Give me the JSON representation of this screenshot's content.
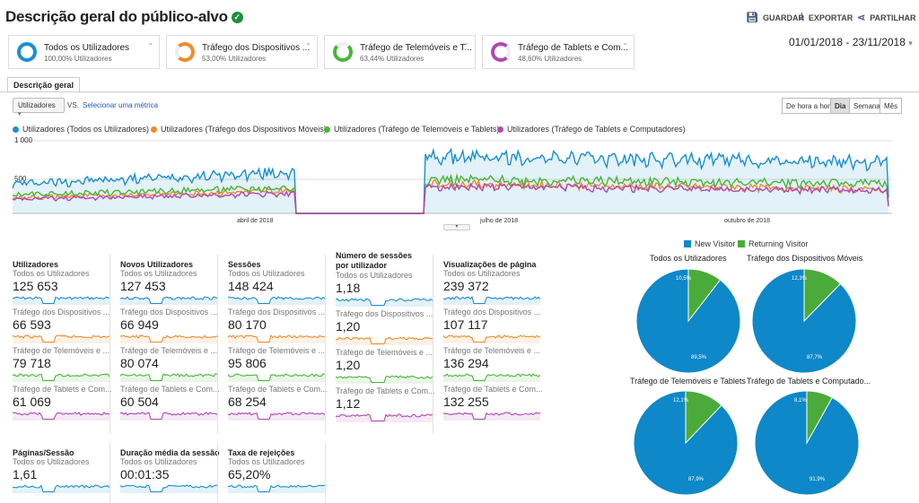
{
  "header": {
    "title": "Descrição geral do público-alvo",
    "save_label": "GUARDAR",
    "export_label": "EXPORTAR",
    "share_label": "PARTILHAR"
  },
  "segments": [
    {
      "name": "Todos os Utilizadores",
      "pct": "100,00% Utilizadores",
      "color": "#1a8fd0"
    },
    {
      "name": "Tráfego dos Dispositivos ...",
      "pct": "53,00% Utilizadores",
      "color": "#f08b2a"
    },
    {
      "name": "Tráfego de Telemóveis e T...",
      "pct": "63,44% Utilizadores",
      "color": "#4ab53a"
    },
    {
      "name": "Tráfego de Tablets e Com...",
      "pct": "48,60% Utilizadores",
      "color": "#b048b5"
    }
  ],
  "date_range": "01/01/2018 - 23/11/2018",
  "tab": "Descrição geral",
  "controls": {
    "metric": "Utilizadores",
    "vs": "VS.",
    "select_metric": "Selecionar uma métrica",
    "granularity": [
      "De hora a hora",
      "Dia",
      "Semana",
      "Mês"
    ],
    "active_granularity": "Dia"
  },
  "chart_legend": [
    "Utilizadores (Todos os Utilizadores)",
    "Utilizadores (Tráfego dos Dispositivos Móveis)",
    "Utilizadores (Tráfego de Telemóveis e Tablets)",
    "Utilizadores (Tráfego de Tablets e Computadores)"
  ],
  "chart_data": {
    "type": "line",
    "y_ticks": [
      "1 000",
      "500"
    ],
    "ylim": [
      0,
      1000
    ],
    "x_ticks": [
      "abril de 2018",
      "julho de 2018",
      "outubro de 2018"
    ],
    "series": [
      {
        "name": "Utilizadores (Todos os Utilizadores)",
        "color": "#1a8fd0",
        "segments": [
          {
            "start": 420,
            "end": 580
          },
          {
            "start": 800,
            "end": 720
          }
        ]
      },
      {
        "name": "Utilizadores (Tráfego dos Dispositivos Móveis)",
        "color": "#f08b2a",
        "segments": [
          {
            "start": 220,
            "end": 320
          },
          {
            "start": 420,
            "end": 340
          }
        ]
      },
      {
        "name": "Utilizadores (Tráfego de Telemóveis e Tablets)",
        "color": "#4ab53a",
        "segments": [
          {
            "start": 260,
            "end": 360
          },
          {
            "start": 480,
            "end": 420
          }
        ]
      },
      {
        "name": "Utilizadores (Tráfego de Tablets e Computadores)",
        "color": "#b048b5",
        "segments": [
          {
            "start": 200,
            "end": 280
          },
          {
            "start": 380,
            "end": 320
          }
        ]
      }
    ]
  },
  "metrics": [
    {
      "title": "Utilizadores",
      "rows": [
        {
          "segment": "Todos os Utilizadores",
          "value": "125 653",
          "color": "#1a8fd0"
        },
        {
          "segment": "Tráfego dos Dispositivos ...",
          "value": "66 593",
          "color": "#f08b2a"
        },
        {
          "segment": "Tráfego de Telemóveis e ...",
          "value": "79 718",
          "color": "#4ab53a"
        },
        {
          "segment": "Tráfego de Tablets e Com...",
          "value": "61 069",
          "color": "#b048b5"
        }
      ]
    },
    {
      "title": "Novos Utilizadores",
      "rows": [
        {
          "segment": "Todos os Utilizadores",
          "value": "127 453",
          "color": "#1a8fd0"
        },
        {
          "segment": "Tráfego dos Dispositivos ...",
          "value": "66 949",
          "color": "#f08b2a"
        },
        {
          "segment": "Tráfego de Telemóveis e ...",
          "value": "80 074",
          "color": "#4ab53a"
        },
        {
          "segment": "Tráfego de Tablets e Com...",
          "value": "60 504",
          "color": "#b048b5"
        }
      ]
    },
    {
      "title": "Sessões",
      "rows": [
        {
          "segment": "Todos os Utilizadores",
          "value": "148 424",
          "color": "#1a8fd0"
        },
        {
          "segment": "Tráfego dos Dispositivos ...",
          "value": "80 170",
          "color": "#f08b2a"
        },
        {
          "segment": "Tráfego de Telemóveis e ...",
          "value": "95 806",
          "color": "#4ab53a"
        },
        {
          "segment": "Tráfego de Tablets e Com...",
          "value": "68 254",
          "color": "#b048b5"
        }
      ]
    },
    {
      "title": "Número de sessões por utilizador",
      "rows": [
        {
          "segment": "Todos os Utilizadores",
          "value": "1,18",
          "color": "#1a8fd0"
        },
        {
          "segment": "Tráfego dos Dispositivos ...",
          "value": "1,20",
          "color": "#f08b2a"
        },
        {
          "segment": "Tráfego de Telemóveis e ...",
          "value": "1,20",
          "color": "#4ab53a"
        },
        {
          "segment": "Tráfego de Tablets e Com...",
          "value": "1,12",
          "color": "#b048b5"
        }
      ]
    },
    {
      "title": "Visualizações de página",
      "rows": [
        {
          "segment": "Todos os Utilizadores",
          "value": "239 372",
          "color": "#1a8fd0"
        },
        {
          "segment": "Tráfego dos Dispositivos ...",
          "value": "107 117",
          "color": "#f08b2a"
        },
        {
          "segment": "Tráfego de Telemóveis e ...",
          "value": "136 294",
          "color": "#4ab53a"
        },
        {
          "segment": "Tráfego de Tablets e Com...",
          "value": "132 255",
          "color": "#b048b5"
        }
      ]
    },
    {
      "title": "Páginas/Sessão",
      "rows": [
        {
          "segment": "Todos os Utilizadores",
          "value": "1,61",
          "color": "#1a8fd0"
        }
      ]
    },
    {
      "title": "Duração média da sessão",
      "rows": [
        {
          "segment": "Todos os Utilizadores",
          "value": "00:01:35",
          "color": "#1a8fd0"
        }
      ]
    },
    {
      "title": "Taxa de rejeições",
      "rows": [
        {
          "segment": "Todos os Utilizadores",
          "value": "65,20%",
          "color": "#1a8fd0"
        }
      ]
    }
  ],
  "pie_legend": {
    "new": "New Visitor",
    "returning": "Returning Visitor",
    "new_color": "#0e88c8",
    "returning_color": "#4aab3a"
  },
  "pies": [
    {
      "title": "Todos os Utilizadores",
      "new_pct": 89.5,
      "returning_pct": 10.5,
      "new_label": "89,5%",
      "returning_label": "10,5%"
    },
    {
      "title": "Tráfego dos Dispositivos Móveis",
      "new_pct": 87.7,
      "returning_pct": 12.3,
      "new_label": "87,7%",
      "returning_label": "12,3%"
    },
    {
      "title": "Tráfego de Telemóveis e Tablets",
      "new_pct": 87.9,
      "returning_pct": 12.1,
      "new_label": "87,9%",
      "returning_label": "12,1%"
    },
    {
      "title": "Tráfego de Tablets e Computado...",
      "new_pct": 91.9,
      "returning_pct": 8.1,
      "new_label": "91,9%",
      "returning_label": "8,1%"
    }
  ]
}
